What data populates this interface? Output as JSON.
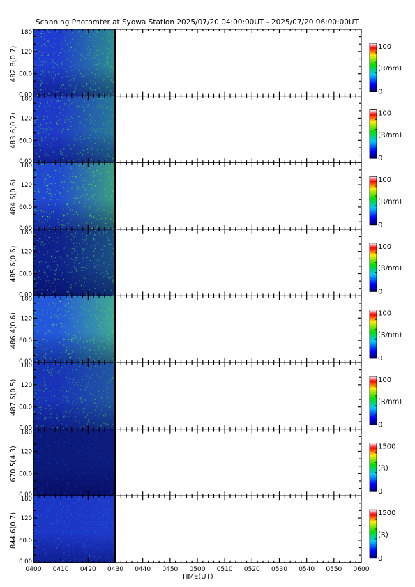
{
  "title": "Scanning Photomter at Syowa Station  2025/07/20 04:00:00UT - 2025/07/20 06:00:00UT",
  "chart_data": {
    "type": "heatmap",
    "xlabel": "TIME(UT)",
    "x_ticks": [
      "0400",
      "0410",
      "0420",
      "0430",
      "0440",
      "0450",
      "0500",
      "0510",
      "0520",
      "0530",
      "0540",
      "0550",
      "0600"
    ],
    "xlim": [
      "04:00",
      "06:00"
    ],
    "data_end": "04:30",
    "ylim": [
      0,
      180
    ],
    "y_ticks": [
      "0.00",
      "60.0",
      "120",
      "180"
    ],
    "panels": [
      {
        "label": "482.8(0.7)",
        "colorbar_label": "(R/nm)",
        "cmin": "0",
        "cmax": "100",
        "base": "#1f3bd0",
        "speckle": "#3bcf5a",
        "glow": 0.55
      },
      {
        "label": "483.6(0.7)",
        "colorbar_label": "(R/nm)",
        "cmin": "0",
        "cmax": "100",
        "base": "#1f39c9",
        "speckle": "#35c85a",
        "glow": 0.45
      },
      {
        "label": "484.6(0.6)",
        "colorbar_label": "(R/nm)",
        "cmin": "0",
        "cmax": "100",
        "base": "#2148d3",
        "speckle": "#4fd84c",
        "glow": 0.6
      },
      {
        "label": "485.6(0.6)",
        "colorbar_label": "(R/nm)",
        "cmin": "0",
        "cmax": "100",
        "base": "#0f1f8c",
        "speckle": "#3ac46a",
        "glow": 0.3
      },
      {
        "label": "486.4(0.6)",
        "colorbar_label": "(R/nm)",
        "cmin": "0",
        "cmax": "100",
        "base": "#2458dc",
        "speckle": "#4fd66a",
        "glow": 0.65
      },
      {
        "label": "487.6(0.5)",
        "colorbar_label": "(R/nm)",
        "cmin": "0",
        "cmax": "100",
        "base": "#1833b8",
        "speckle": "#3ab06a",
        "glow": 0.3
      },
      {
        "label": "670.5(4.3)",
        "colorbar_label": "(R)",
        "cmin": "0",
        "cmax": "1500",
        "base": "#0b1a7a",
        "speckle": "#1a2fa8",
        "glow": 0.05
      },
      {
        "label": "844.6(0.7)",
        "colorbar_label": "(R)",
        "cmin": "0",
        "cmax": "1500",
        "base": "#1c36c6",
        "speckle": "#2a63e0",
        "glow": 0.1
      }
    ]
  }
}
